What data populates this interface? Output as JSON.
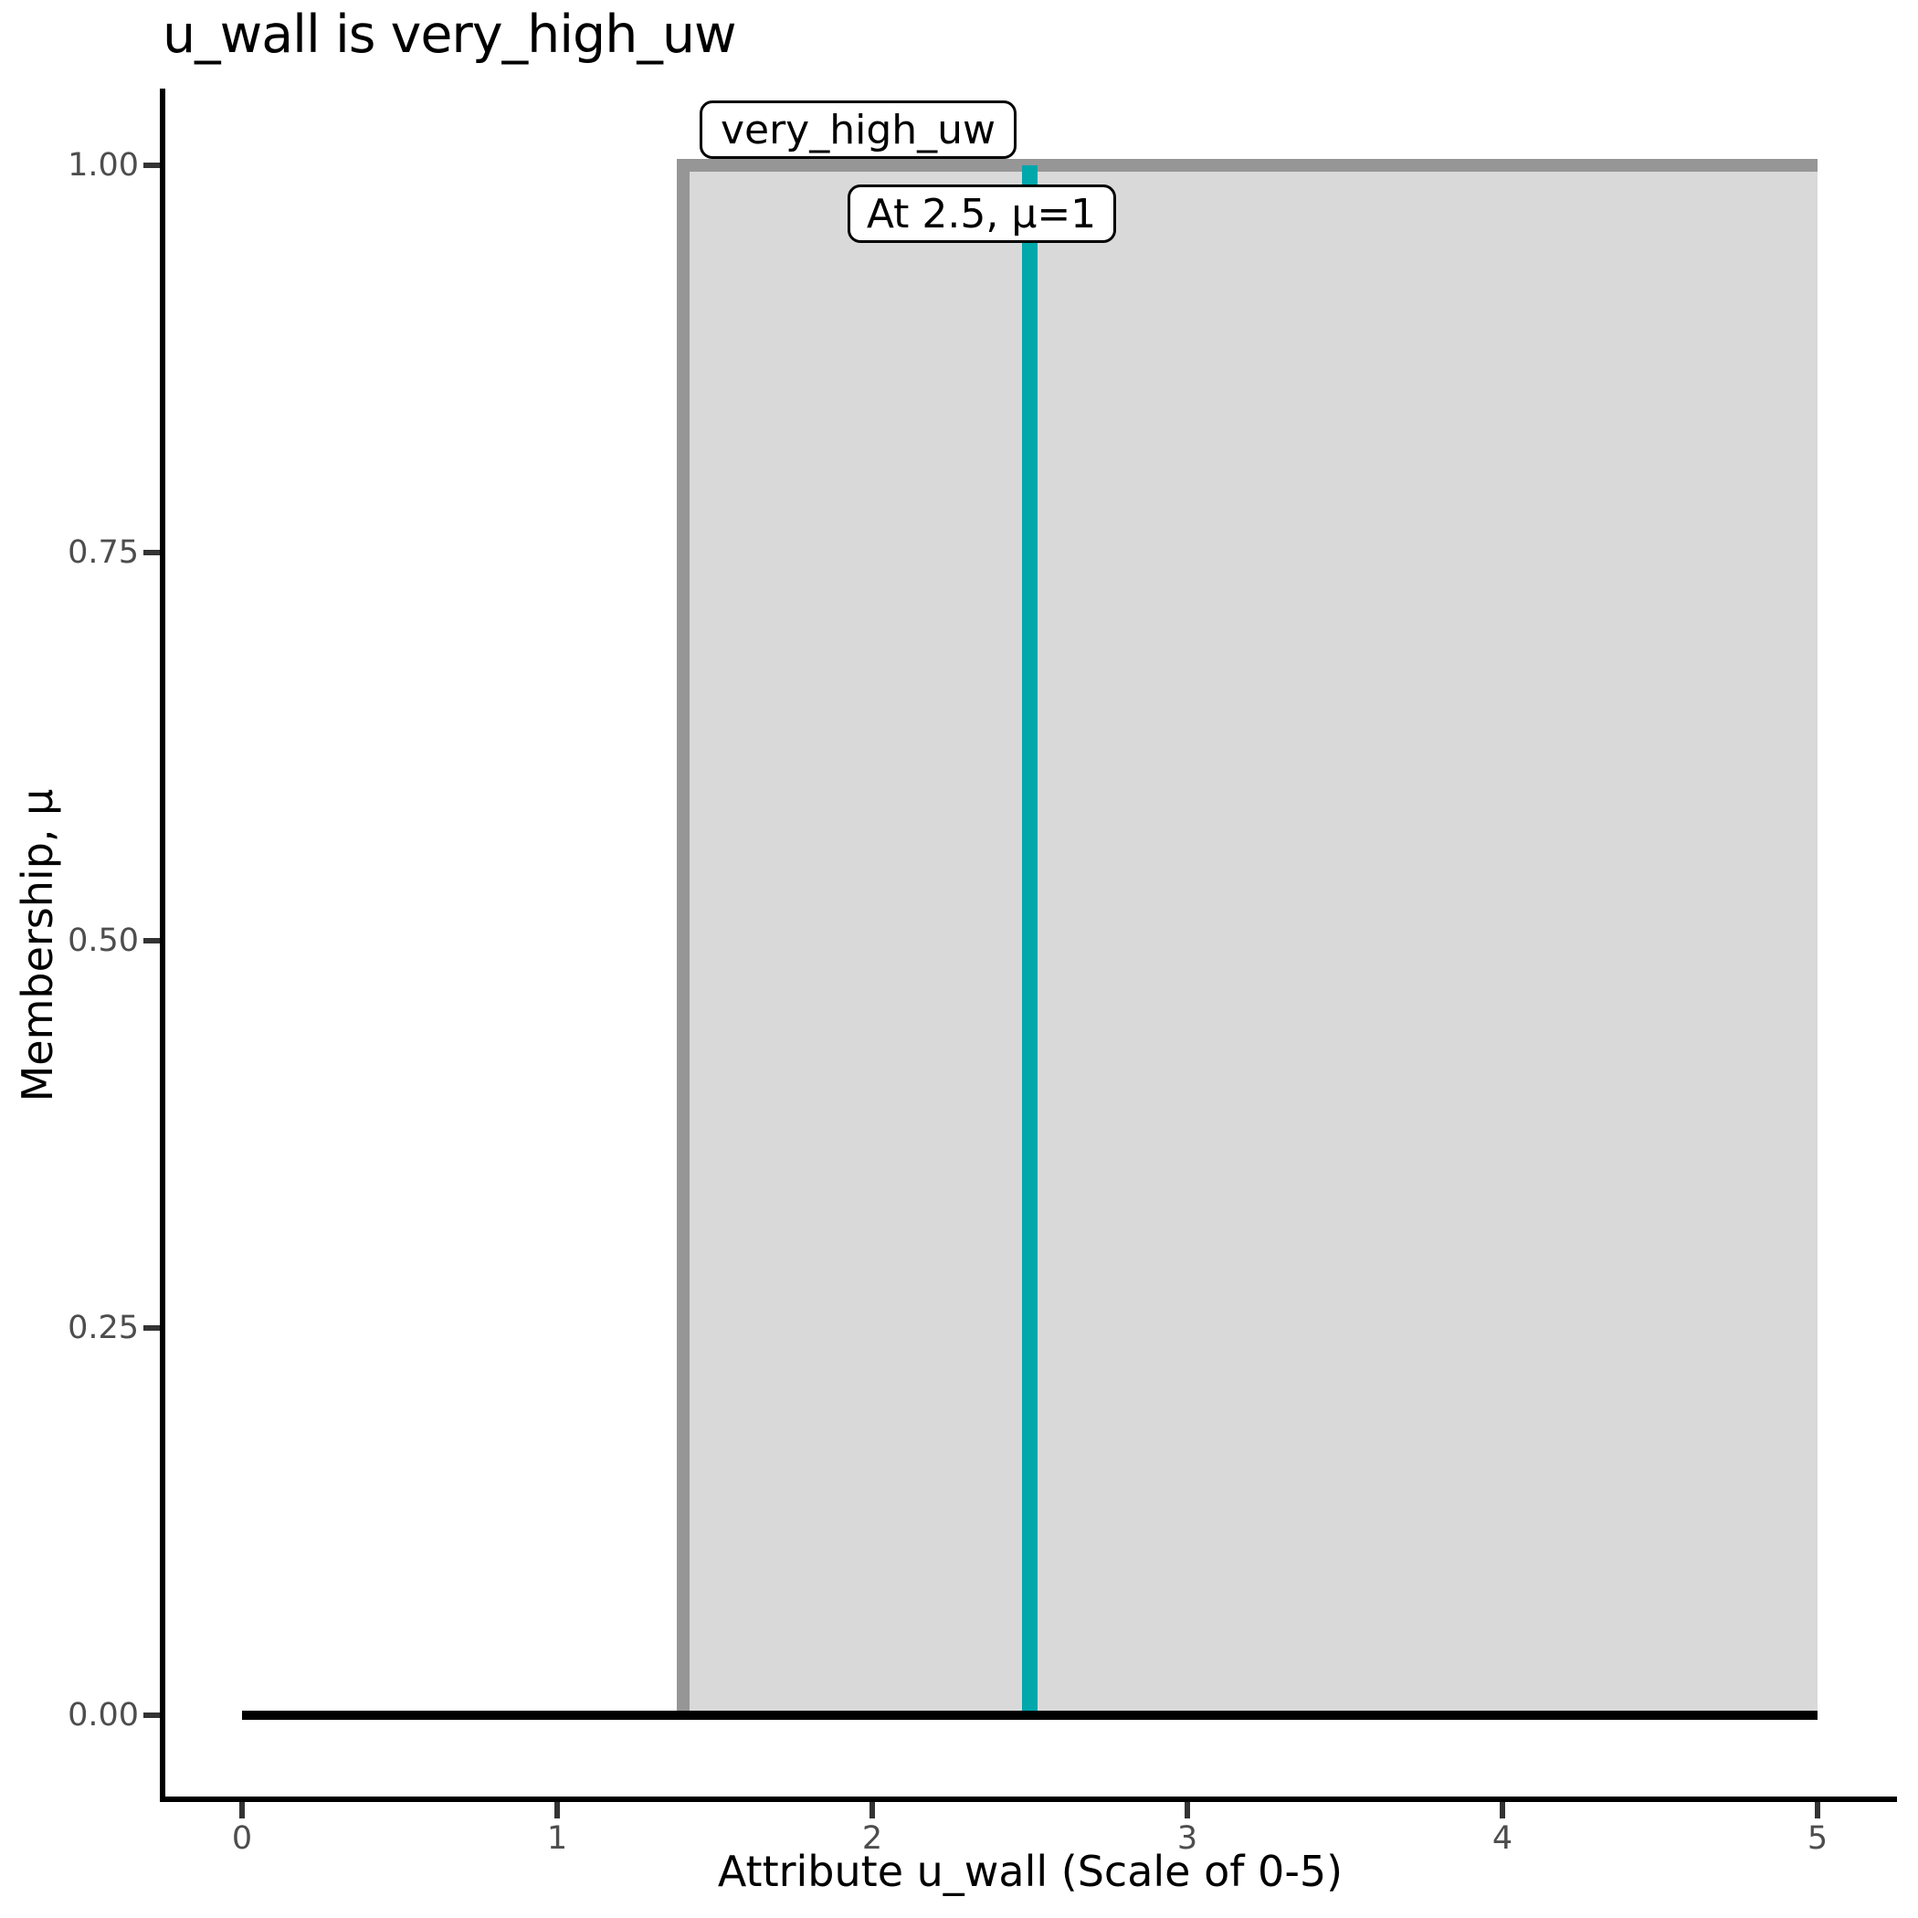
{
  "chart_data": {
    "type": "area",
    "title": "u_wall is very_high_uw",
    "xlabel": "Attribute u_wall (Scale of 0-5)",
    "ylabel": "Membership, μ",
    "xlim": [
      0,
      5
    ],
    "ylim": [
      0,
      1
    ],
    "x_ticks": [
      "0",
      "1",
      "2",
      "3",
      "4",
      "5"
    ],
    "y_ticks": [
      "0.00",
      "0.25",
      "0.50",
      "0.75",
      "1.00"
    ],
    "grid": false,
    "legend": "none",
    "series": [
      {
        "name": "very_high_uw",
        "type": "step-area",
        "points": [
          [
            0,
            0
          ],
          [
            1.4,
            0
          ],
          [
            1.4,
            1
          ],
          [
            5,
            1
          ]
        ],
        "line_color": "#969696",
        "fill_color": "#D9D9D9"
      },
      {
        "name": "zero-baseline",
        "type": "line",
        "points": [
          [
            0,
            0
          ],
          [
            5,
            0
          ]
        ],
        "line_color": "#000000"
      },
      {
        "name": "input-value-line",
        "type": "vline",
        "x": 2.5,
        "y_from": 0,
        "y_to": 1,
        "line_color": "#00A7AB"
      }
    ],
    "annotations": [
      {
        "text": "very_high_uw",
        "x": 1.4,
        "y": 1.0
      },
      {
        "text": "At 2.5, μ=1",
        "x": 2.5,
        "y": 1.0
      }
    ],
    "colors": {
      "axis_line": "#000000",
      "tick": "#333333",
      "tick_label": "#4d4d4d",
      "text": "#000000",
      "membership_line": "#969696",
      "membership_fill": "#D9D9D9",
      "input_line": "#00A7AB",
      "background": "#ffffff"
    }
  }
}
